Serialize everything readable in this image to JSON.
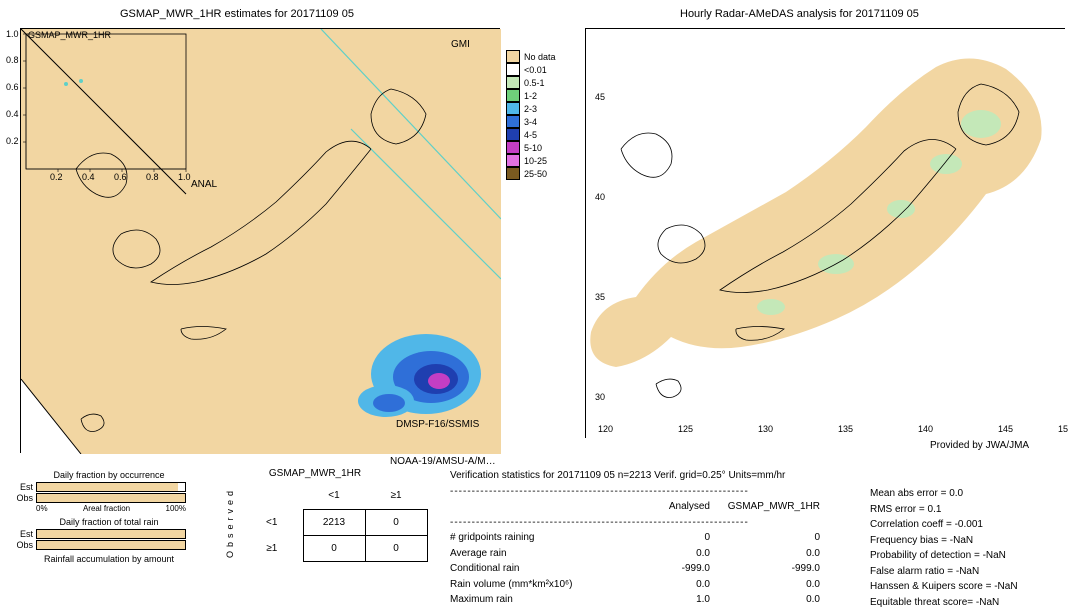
{
  "left_map": {
    "title": "GSMAP_MWR_1HR estimates for 20171109 05",
    "inset_label": "GSMAP_MWR_1HR",
    "inset_ticks_x": [
      "0.2",
      "0.4",
      "0.6",
      "0.8",
      "1.0"
    ],
    "inset_ticks_y": [
      "0.2",
      "0.4",
      "0.6",
      "0.8",
      "1.0"
    ],
    "center_label": "ANAL",
    "annot_top_right": "GMI",
    "annot_bottom_right": "DMSP-F16/SSMIS",
    "annot_bottom": "NOAA-19/AMSU-A/M…",
    "bg_color": "#f2d6a2",
    "coast_color": "#000000",
    "swath_line_color": "#5fd0c8",
    "rain_colors": [
      "#c4e8b8",
      "#6fd07a",
      "#50b7e8",
      "#2f6fd8",
      "#1f3fb0",
      "#c43ec4",
      "#e070e0",
      "#7a5a20"
    ]
  },
  "right_map": {
    "title": "Hourly Radar-AMeDAS analysis for 20171109 05",
    "provider": "Provided by JWA/JMA",
    "lat_labels": [
      "45",
      "40",
      "35",
      "30"
    ],
    "lon_labels": [
      "120",
      "125",
      "130",
      "135",
      "140",
      "145",
      "15"
    ],
    "bg_color": "#ffffff",
    "buffer_color": "#f2d6a2",
    "rain_light_color": "#c4e8b8",
    "coast_color": "#000000"
  },
  "legend": {
    "items": [
      {
        "label": "No data",
        "color": "#f2d6a2"
      },
      {
        "label": "<0.01",
        "color": "#ffffff"
      },
      {
        "label": "0.5-1",
        "color": "#c4e8b8"
      },
      {
        "label": "1-2",
        "color": "#6fd07a"
      },
      {
        "label": "2-3",
        "color": "#50b7e8"
      },
      {
        "label": "3-4",
        "color": "#2f6fd8"
      },
      {
        "label": "4-5",
        "color": "#1f3fb0"
      },
      {
        "label": "5-10",
        "color": "#c43ec4"
      },
      {
        "label": "10-25",
        "color": "#e070e0"
      },
      {
        "label": "25-50",
        "color": "#7a5a20"
      }
    ]
  },
  "fraction": {
    "occurrence_title": "Daily fraction by occurrence",
    "totalrain_title": "Daily fraction of total rain",
    "accum_title": "Rainfall accumulation by amount",
    "axis_left": "0%",
    "axis_mid": "Areal fraction",
    "axis_right": "100%",
    "rows": [
      {
        "label": "Est",
        "fill_pct": 95
      },
      {
        "label": "Obs",
        "fill_pct": 100
      }
    ],
    "rows2": [
      {
        "label": "Est",
        "fill_pct": 100
      },
      {
        "label": "Obs",
        "fill_pct": 100
      }
    ],
    "bar_color": "#f2d6a2"
  },
  "contingency": {
    "title": "GSMAP_MWR_1HR",
    "col_headers": [
      "<1",
      "≥1"
    ],
    "row_headers": [
      "<1",
      "≥1"
    ],
    "side_label": "Observed",
    "cells": [
      [
        "2213",
        "0"
      ],
      [
        "0",
        "0"
      ]
    ]
  },
  "verif": {
    "header": "Verification statistics for 20171109 05   n=2213   Verif. grid=0.25°   Units=mm/hr",
    "dash_line": "---------------------------------------------------------------------",
    "col_headers": [
      "Analysed",
      "GSMAP_MWR_1HR"
    ],
    "rows": [
      {
        "label": "# gridpoints raining",
        "a": "0",
        "b": "0"
      },
      {
        "label": "Average rain",
        "a": "0.0",
        "b": "0.0"
      },
      {
        "label": "Conditional rain",
        "a": "-999.0",
        "b": "-999.0"
      },
      {
        "label": "Rain volume (mm*km²x10⁶)",
        "a": "0.0",
        "b": "0.0"
      },
      {
        "label": "Maximum rain",
        "a": "1.0",
        "b": "0.0"
      }
    ],
    "metrics": [
      "Mean abs error = 0.0",
      "RMS error = 0.1",
      "Correlation coeff = -0.001",
      "Frequency bias = -NaN",
      "Probability of detection = -NaN",
      "False alarm ratio = -NaN",
      "Hanssen & Kuipers score = -NaN",
      "Equitable threat score= -NaN"
    ]
  }
}
